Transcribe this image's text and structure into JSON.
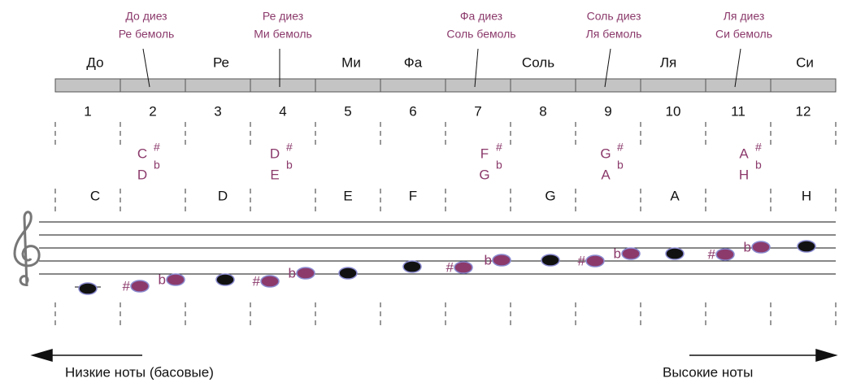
{
  "top_accidental_names": [
    [
      "До диез",
      "Ре бемоль"
    ],
    [
      "Ре диез",
      "Ми бемоль"
    ],
    [
      "Фа диез",
      "Соль бемоль"
    ],
    [
      "Соль диез",
      "Ля бемоль"
    ],
    [
      "Ля диез",
      "Си бемоль"
    ]
  ],
  "natural_names": [
    "До",
    "Ре",
    "Ми",
    "Фа",
    "Соль",
    "Ля",
    "Си"
  ],
  "columns": [
    1,
    2,
    3,
    4,
    5,
    6,
    7,
    8,
    9,
    10,
    11,
    12
  ],
  "sharp_sign": "#",
  "flat_sign": "b",
  "latin_accidentals": [
    {
      "sharp": "C",
      "flat": "D"
    },
    {
      "sharp": "D",
      "flat": "E"
    },
    {
      "sharp": "F",
      "flat": "G"
    },
    {
      "sharp": "G",
      "flat": "A"
    },
    {
      "sharp": "A",
      "flat": "H"
    }
  ],
  "latin_naturals": [
    "C",
    "D",
    "E",
    "F",
    "G",
    "A",
    "H"
  ],
  "low_notes_label": "Низкие ноты (басовые)",
  "high_notes_label": "Высокие ноты"
}
